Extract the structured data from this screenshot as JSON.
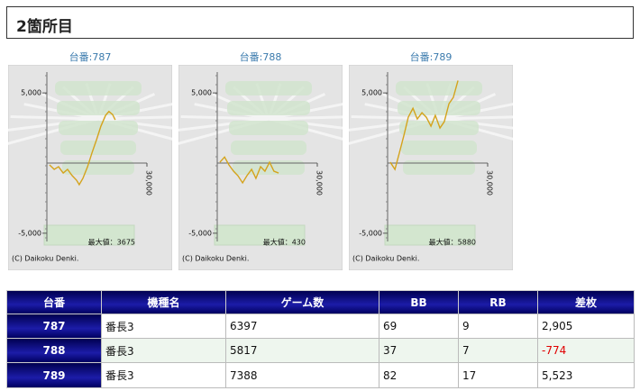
{
  "header": {
    "title": "2箇所目"
  },
  "chart_data": [
    {
      "type": "line",
      "title": "台番:787",
      "color": "#d4a31c",
      "x": [
        800,
        2200,
        3500,
        4900,
        6200,
        7600,
        8900,
        9700,
        10800,
        12200,
        13500,
        14900,
        16200,
        17600,
        18600,
        19700,
        20500
      ],
      "values": [
        -130,
        -450,
        -260,
        -710,
        -450,
        -900,
        -1220,
        -1540,
        -1090,
        -260,
        710,
        1670,
        2630,
        3400,
        3675,
        3460,
        3080
      ],
      "xlim": [
        0,
        30000
      ],
      "ylim": [
        -7000,
        7000
      ],
      "xticks": [
        {
          "value": 30000,
          "label": "30,000"
        }
      ],
      "yticks": [
        {
          "value": 5000,
          "label": "5,000"
        },
        {
          "value": -5000,
          "label": "-5,000"
        }
      ],
      "annotation": "最大値：3675",
      "credit": "(C) Daikoku Denki."
    },
    {
      "type": "line",
      "title": "台番:788",
      "color": "#d4a31c",
      "x": [
        800,
        2200,
        3500,
        4900,
        6200,
        7600,
        8900,
        10300,
        11600,
        13000,
        14300,
        15700,
        17000,
        18400
      ],
      "values": [
        60,
        430,
        -130,
        -580,
        -900,
        -1410,
        -900,
        -450,
        -1090,
        -260,
        -580,
        60,
        -580,
        -710
      ],
      "xlim": [
        0,
        30000
      ],
      "ylim": [
        -7000,
        7000
      ],
      "xticks": [
        {
          "value": 30000,
          "label": "30,000"
        }
      ],
      "yticks": [
        {
          "value": 5000,
          "label": "5,000"
        },
        {
          "value": -5000,
          "label": "-5,000"
        }
      ],
      "annotation": "最大値：430",
      "credit": "(C) Daikoku Denki."
    },
    {
      "type": "line",
      "title": "台番:789",
      "color": "#d4a31c",
      "x": [
        800,
        2200,
        3500,
        4900,
        6200,
        7600,
        8900,
        10300,
        11600,
        13000,
        14300,
        15700,
        17000,
        18400,
        19700,
        21100
      ],
      "values": [
        60,
        -450,
        700,
        1990,
        3270,
        3910,
        3140,
        3590,
        3270,
        2630,
        3400,
        2500,
        2950,
        4230,
        4680,
        5880
      ],
      "xlim": [
        0,
        30000
      ],
      "ylim": [
        -7000,
        7000
      ],
      "xticks": [
        {
          "value": 30000,
          "label": "30,000"
        }
      ],
      "yticks": [
        {
          "value": 5000,
          "label": "5,000"
        },
        {
          "value": -5000,
          "label": "-5,000"
        }
      ],
      "annotation": "最大値：5880",
      "credit": "(C) Daikoku Denki."
    }
  ],
  "table": {
    "headers": [
      "台番",
      "機種名",
      "ゲーム数",
      "BB",
      "RB",
      "差枚"
    ],
    "rows": [
      [
        "787",
        "番長3",
        "6397",
        "69",
        "9",
        "2,905"
      ],
      [
        "788",
        "番長3",
        "5817",
        "37",
        "7",
        "-774"
      ],
      [
        "789",
        "番長3",
        "7388",
        "82",
        "17",
        "5,523"
      ]
    ]
  }
}
